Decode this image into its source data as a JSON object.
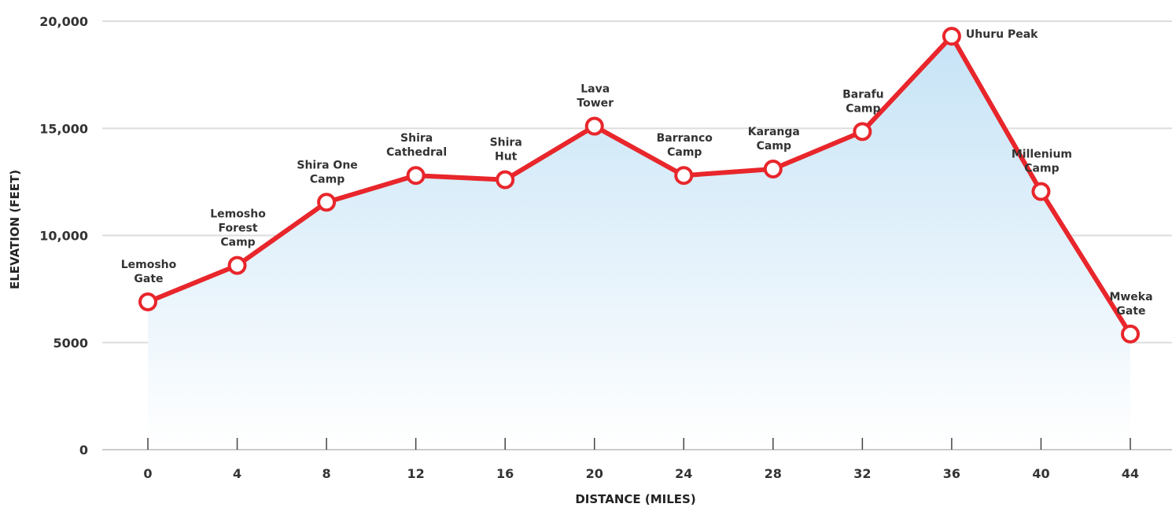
{
  "chart_data": {
    "type": "line",
    "xlabel": "DISTANCE (MILES)",
    "ylabel": "ELEVATION (FEET)",
    "xlim": [
      0,
      44
    ],
    "ylim": [
      0,
      20000
    ],
    "x_ticks": [
      0,
      4,
      8,
      12,
      16,
      20,
      24,
      28,
      32,
      36,
      40,
      44
    ],
    "y_ticks": [
      0,
      5000,
      10000,
      15000,
      20000
    ],
    "y_tick_labels": [
      "0",
      "5000",
      "10,000",
      "15,000",
      "20,000"
    ],
    "grid": true,
    "colors": {
      "line": "#e8262b",
      "area_top": "#c6e3f6",
      "area_bottom": "#ffffff",
      "grid": "#dddddd"
    },
    "series": [
      {
        "points": [
          {
            "x": 0,
            "y": 6900,
            "label": [
              "Lemosho",
              "Gate"
            ]
          },
          {
            "x": 4,
            "y": 8600,
            "label": [
              "Lemosho",
              "Forest",
              "Camp"
            ]
          },
          {
            "x": 8,
            "y": 11550,
            "label": [
              "Shira One",
              "Camp"
            ]
          },
          {
            "x": 12,
            "y": 12800,
            "label": [
              "Shira",
              "Cathedral"
            ]
          },
          {
            "x": 16,
            "y": 12600,
            "label": [
              "Shira",
              "Hut"
            ]
          },
          {
            "x": 20,
            "y": 15100,
            "label": [
              "Lava",
              "Tower"
            ]
          },
          {
            "x": 24,
            "y": 12800,
            "label": [
              "Barranco",
              "Camp"
            ]
          },
          {
            "x": 28,
            "y": 13100,
            "label": [
              "Karanga",
              "Camp"
            ]
          },
          {
            "x": 32,
            "y": 14850,
            "label": [
              "Barafu",
              "Camp"
            ]
          },
          {
            "x": 36,
            "y": 19300,
            "label": [
              "Uhuru Peak"
            ]
          },
          {
            "x": 40,
            "y": 12050,
            "label": [
              "Millenium",
              "Camp"
            ]
          },
          {
            "x": 44,
            "y": 5400,
            "label": [
              "Mweka",
              "Gate"
            ]
          }
        ]
      }
    ]
  }
}
